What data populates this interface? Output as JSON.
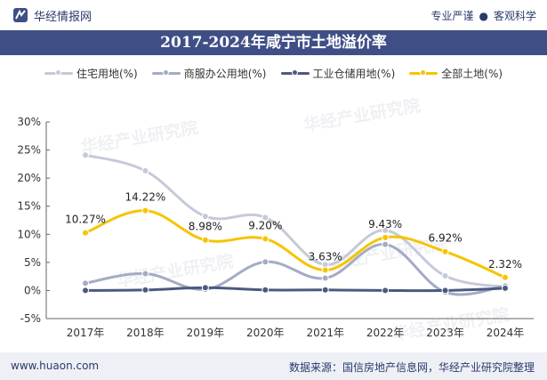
{
  "header": {
    "brand": "华经情报网",
    "tagline_left": "专业严谨",
    "tagline_right": "客观科学",
    "title": "2017-2024年咸宁市土地溢价率"
  },
  "colors": {
    "title_bar": "#3f4f86",
    "residential": "#c5cad8",
    "commercial": "#a4acc4",
    "industrial": "#4a5a80",
    "all": "#f5c400"
  },
  "watermark": "华经产业研究院",
  "chart_data": {
    "type": "line",
    "smooth": true,
    "title": "2017-2024年咸宁市土地溢价率",
    "categories": [
      "2017年",
      "2018年",
      "2019年",
      "2020年",
      "2021年",
      "2022年",
      "2023年",
      "2024年"
    ],
    "ylim": [
      -5,
      30
    ],
    "yticks": [
      -5,
      0,
      5,
      10,
      15,
      20,
      25,
      30
    ],
    "ytick_labels": [
      "-5%",
      "0%",
      "5%",
      "10%",
      "15%",
      "20%",
      "25%",
      "30%"
    ],
    "legend_position": "top-center",
    "series": [
      {
        "name": "住宅用地(%)",
        "key": "residential",
        "values": [
          24.1,
          21.3,
          13.2,
          13.0,
          4.6,
          10.7,
          2.6,
          0.6
        ],
        "labels": []
      },
      {
        "name": "商服办公用地(%)",
        "key": "commercial",
        "values": [
          1.3,
          3.0,
          0.2,
          5.1,
          2.2,
          8.2,
          -0.3,
          0.8
        ],
        "labels": []
      },
      {
        "name": "工业仓储用地(%)",
        "key": "industrial",
        "values": [
          0.0,
          0.1,
          0.5,
          0.1,
          0.1,
          0.0,
          0.0,
          0.4
        ],
        "labels": []
      },
      {
        "name": "全部土地(%)",
        "key": "all",
        "values": [
          10.27,
          14.22,
          8.98,
          9.2,
          3.63,
          9.43,
          6.92,
          2.32
        ],
        "labels": [
          "10.27%",
          "14.22%",
          "8.98%",
          "9.20%",
          "3.63%",
          "9.43%",
          "6.92%",
          "2.32%"
        ]
      }
    ]
  },
  "footer": {
    "website": "www.huaon.com",
    "source": "数据来源：国信房地产信息网，华经产业研究院整理"
  }
}
